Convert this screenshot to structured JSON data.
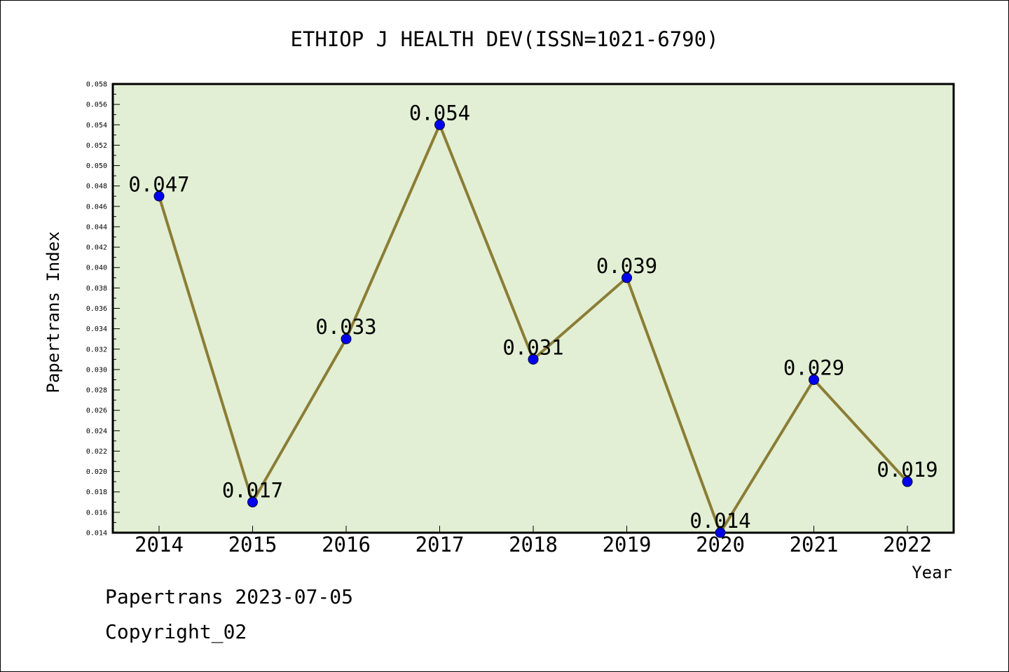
{
  "chart_data": {
    "type": "line",
    "title": "ETHIOP J HEALTH DEV(ISSN=1021-6790)",
    "xlabel": "Year",
    "ylabel": "Papertrans Index",
    "categories": [
      "2014",
      "2015",
      "2016",
      "2017",
      "2018",
      "2019",
      "2020",
      "2021",
      "2022"
    ],
    "values": [
      0.047,
      0.017,
      0.033,
      0.054,
      0.031,
      0.039,
      0.014,
      0.029,
      0.019
    ],
    "data_labels": [
      "0.047",
      "0.017",
      "0.033",
      "0.054",
      "0.031",
      "0.039",
      "0.014",
      "0.029",
      "0.019"
    ],
    "ylim": [
      0.014,
      0.058
    ],
    "yticks": [
      "0.014",
      "0.016",
      "0.018",
      "0.020",
      "0.022",
      "0.024",
      "0.026",
      "0.028",
      "0.030",
      "0.032",
      "0.034",
      "0.036",
      "0.038",
      "0.040",
      "0.042",
      "0.044",
      "0.046",
      "0.048",
      "0.050",
      "0.052",
      "0.054",
      "0.056",
      "0.058"
    ],
    "grid": false,
    "colors": {
      "plot_background": "#e2efd4",
      "line": "#8b7d35",
      "marker": "#0000ee",
      "axis": "#000000"
    }
  },
  "footer": {
    "date_line": "Papertrans 2023-07-05",
    "copyright": "Copyright_02"
  }
}
